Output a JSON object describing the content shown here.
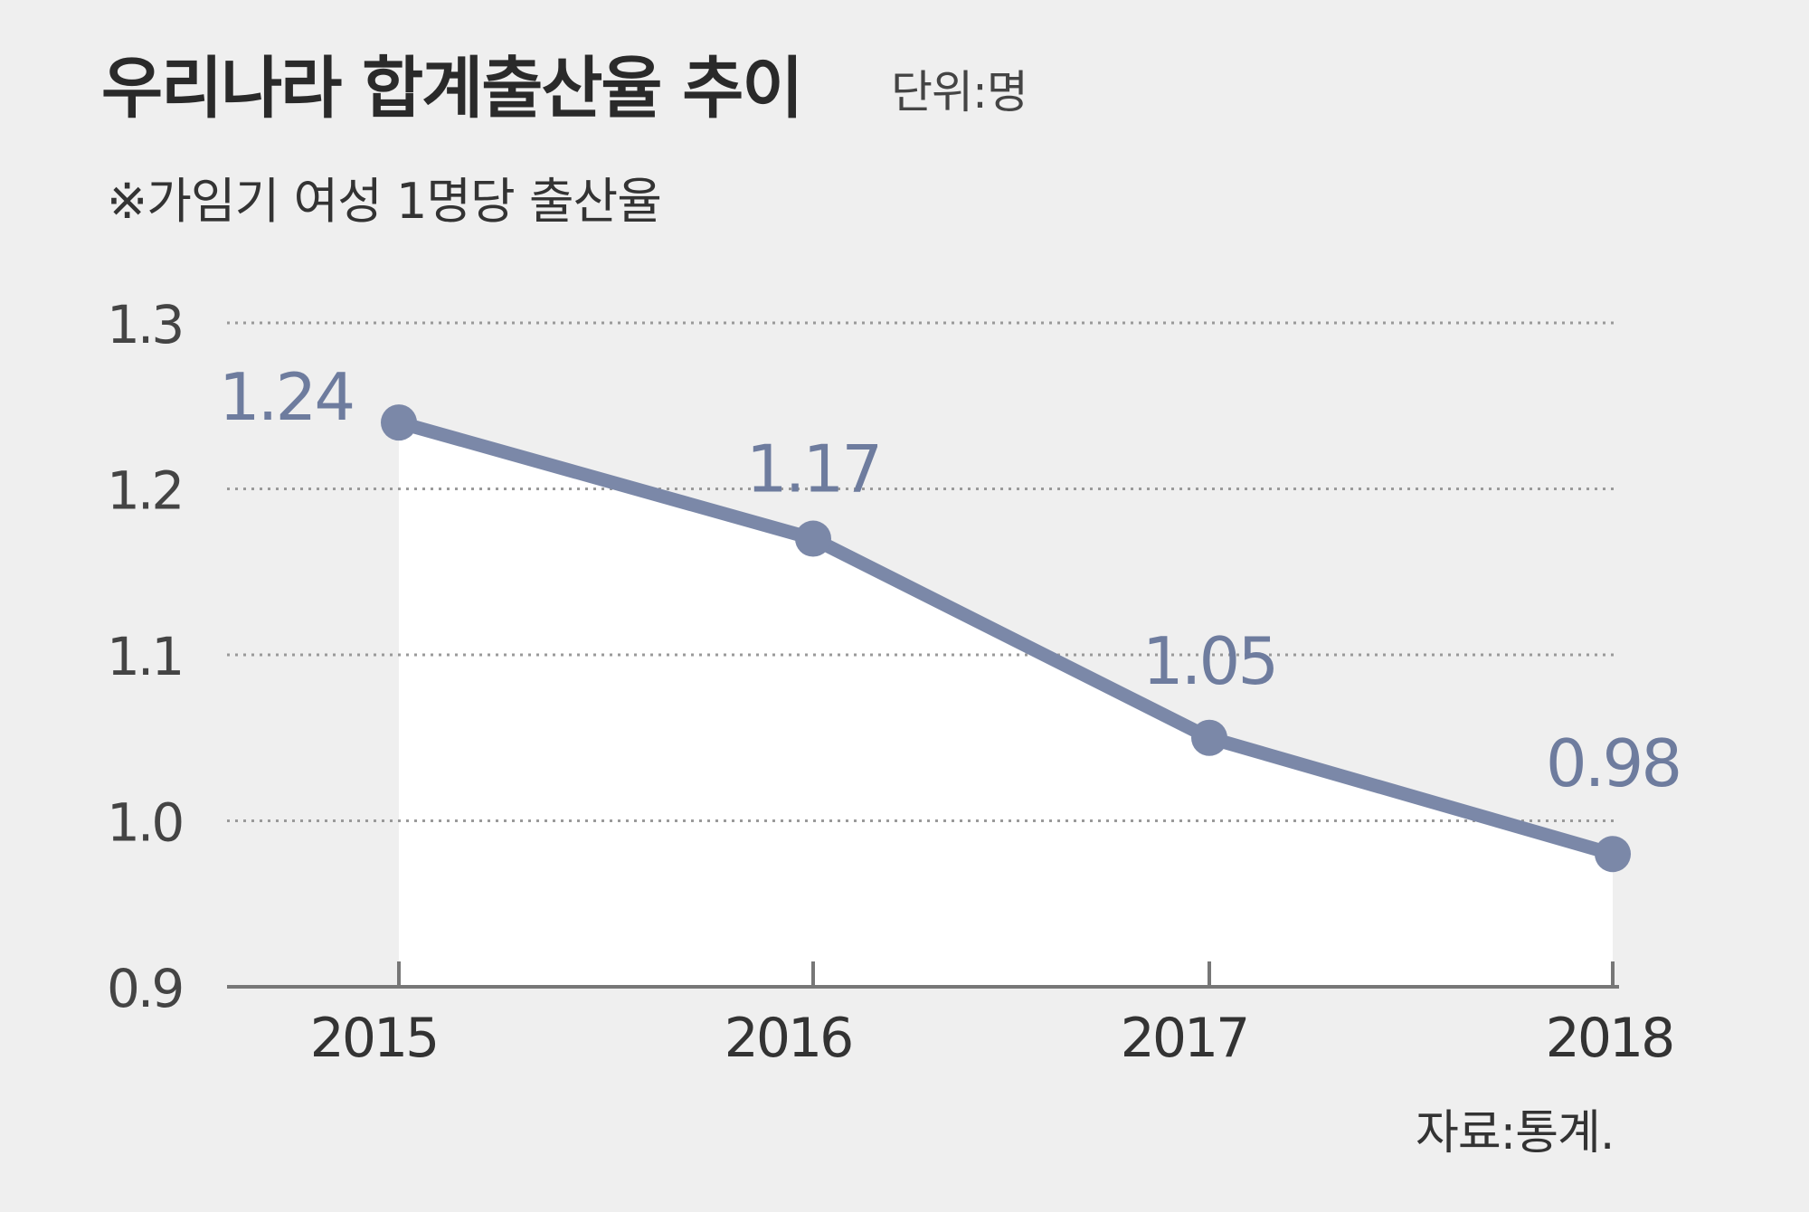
{
  "chart_data": {
    "type": "line",
    "title": "우리나라 합계출산율 추이",
    "unit": "단위:명",
    "subtitle": "※가임기 여성 1명당 출산율",
    "source": "자료:통계.",
    "categories": [
      "2015",
      "2016",
      "2017",
      "2018"
    ],
    "values": [
      1.24,
      1.17,
      1.05,
      0.98
    ],
    "data_labels": [
      "1.24",
      "1.17",
      "1.05",
      "0.98"
    ],
    "ylim": [
      0.9,
      1.3
    ],
    "yticks": [
      "1.3",
      "1.2",
      "1.1",
      "1.0",
      "0.9"
    ],
    "ytick_values": [
      1.3,
      1.2,
      1.1,
      1.0,
      0.9
    ],
    "grid": "horizontal dotted",
    "area_fill": true,
    "colors": {
      "line": "#7b88a8",
      "label": "#6e7c9e",
      "background": "#efefef",
      "fill": "#ffffff",
      "axis": "#777777"
    }
  }
}
